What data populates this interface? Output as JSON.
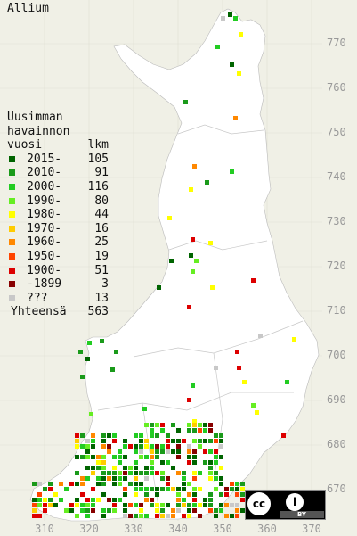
{
  "title": "Allium",
  "legend": {
    "heading_lines": [
      "Uusimman",
      "havainnon"
    ],
    "col_year": "vuosi",
    "col_count": "lkm",
    "items": [
      {
        "label": "2015-",
        "count": "105",
        "color": "#006400"
      },
      {
        "label": "2010-",
        "count": "91",
        "color": "#1a9a1a"
      },
      {
        "label": "2000-",
        "count": "116",
        "color": "#22cc22"
      },
      {
        "label": "1990-",
        "count": "80",
        "color": "#66ee22"
      },
      {
        "label": "1980-",
        "count": "44",
        "color": "#ffff00"
      },
      {
        "label": "1970-",
        "count": "16",
        "color": "#ffcc00"
      },
      {
        "label": "1960-",
        "count": "25",
        "color": "#ff8800"
      },
      {
        "label": "1950-",
        "count": "19",
        "color": "#ff4400"
      },
      {
        "label": "1900-",
        "count": "51",
        "color": "#dd0000"
      },
      {
        "label": "-1899",
        "count": "3",
        "color": "#880000"
      },
      {
        "label": "???",
        "count": "13",
        "color": "#c8c8c8"
      }
    ],
    "total_label": "Yhteensä",
    "total_count": "563"
  },
  "y_ticks": [
    "770",
    "760",
    "750",
    "740",
    "730",
    "720",
    "710",
    "700",
    "690",
    "680",
    "670"
  ],
  "x_ticks": [
    "310",
    "320",
    "330",
    "340",
    "350",
    "360",
    "370"
  ],
  "license": {
    "cc": "cc",
    "info": "i",
    "by": "BY"
  },
  "colors": {
    "background": "#f0f0e6",
    "land": "#ffffff",
    "grid": "#d8d8d8",
    "border": "#c0c0c0"
  }
}
